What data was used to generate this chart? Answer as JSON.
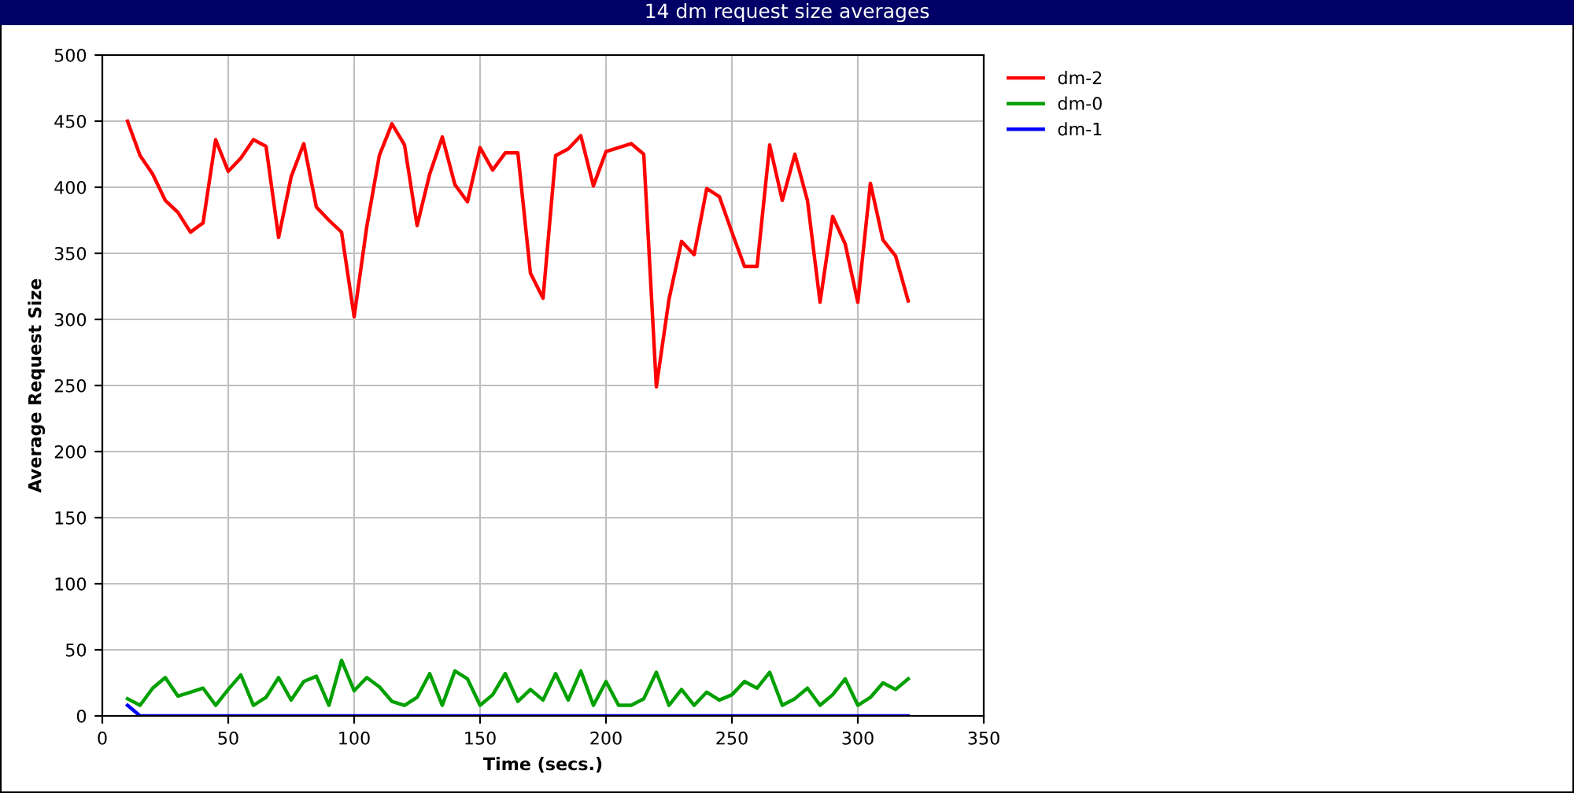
{
  "chart_data": {
    "type": "line",
    "title": "14 dm request size averages",
    "xlabel": "Time (secs.)",
    "ylabel": "Average Request Size",
    "x": [
      10,
      15,
      20,
      25,
      30,
      35,
      40,
      45,
      50,
      55,
      60,
      65,
      70,
      75,
      80,
      85,
      90,
      95,
      100,
      105,
      110,
      115,
      120,
      125,
      130,
      135,
      140,
      145,
      150,
      155,
      160,
      165,
      170,
      175,
      180,
      185,
      190,
      195,
      200,
      205,
      210,
      215,
      220,
      225,
      230,
      235,
      240,
      245,
      250,
      255,
      260,
      265,
      270,
      275,
      280,
      285,
      290,
      295,
      300,
      305,
      310,
      315,
      320
    ],
    "series": [
      {
        "name": "dm-2",
        "color": "#ff0000",
        "values": [
          450,
          424,
          410,
          390,
          381,
          366,
          373,
          436,
          412,
          422,
          436,
          431,
          362,
          408,
          433,
          385,
          375,
          366,
          302,
          370,
          424,
          448,
          432,
          371,
          410,
          438,
          402,
          389,
          430,
          413,
          426,
          426,
          335,
          316,
          424,
          429,
          439,
          401,
          427,
          430,
          433,
          425,
          249,
          315,
          359,
          349,
          399,
          393,
          366,
          340,
          340,
          432,
          390,
          425,
          390,
          313,
          378,
          357,
          313,
          403,
          360,
          348,
          314
        ]
      },
      {
        "name": "dm-0",
        "color": "#00a000",
        "values": [
          13,
          8,
          21,
          29,
          15,
          18,
          21,
          8,
          20,
          31,
          8,
          14,
          29,
          12,
          26,
          30,
          8,
          42,
          19,
          29,
          22,
          11,
          8,
          14,
          32,
          8,
          34,
          28,
          8,
          16,
          32,
          11,
          20,
          12,
          32,
          12,
          34,
          8,
          26,
          8,
          8,
          13,
          33,
          8,
          20,
          8,
          18,
          12,
          16,
          26,
          21,
          33,
          8,
          13,
          21,
          8,
          16,
          28,
          8,
          14,
          25,
          20,
          28
        ]
      },
      {
        "name": "dm-1",
        "color": "#0000ff",
        "values": [
          8,
          0,
          0,
          0,
          0,
          0,
          0,
          0,
          0,
          0,
          0,
          0,
          0,
          0,
          0,
          0,
          0,
          0,
          0,
          0,
          0,
          0,
          0,
          0,
          0,
          0,
          0,
          0,
          0,
          0,
          0,
          0,
          0,
          0,
          0,
          0,
          0,
          0,
          0,
          0,
          0,
          0,
          0,
          0,
          0,
          0,
          0,
          0,
          0,
          0,
          0,
          0,
          0,
          0,
          0,
          0,
          0,
          0,
          0,
          0,
          0,
          0,
          0
        ]
      }
    ],
    "xlim": [
      0,
      350
    ],
    "xticks": [
      0,
      50,
      100,
      150,
      200,
      250,
      300,
      350
    ],
    "ylim": [
      0,
      500
    ],
    "yticks": [
      0,
      50,
      100,
      150,
      200,
      250,
      300,
      350,
      400,
      450,
      500
    ],
    "grid": true,
    "legend": "top right",
    "marker": "none",
    "line_style": "solid"
  }
}
